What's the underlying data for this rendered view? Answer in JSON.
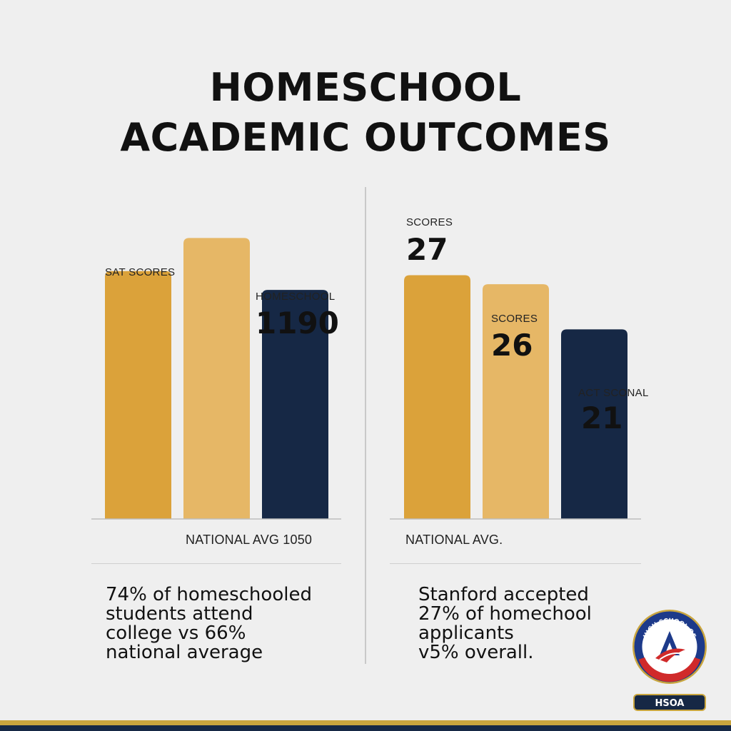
{
  "title": {
    "line1": "HOMESCHOOL",
    "line2": "ACADEMIC OUTCOMES"
  },
  "colors": {
    "gold": "#dba23a",
    "light_gold": "#e6b766",
    "navy": "#162845",
    "background": "#efefef"
  },
  "chart_data": [
    {
      "type": "bar",
      "categories": [
        "",
        "",
        ""
      ],
      "values": [
        1050,
        1190,
        970
      ],
      "colors": [
        "#dba23a",
        "#e6b766",
        "#162845"
      ],
      "ylim": [
        0,
        1300
      ],
      "labels": {
        "left": "SAT SCORES",
        "right_small": "HOMESCHOOL",
        "right_big": "1190",
        "baseline": "NATIONAL AVG 1050"
      },
      "grid": false
    },
    {
      "type": "bar",
      "categories": [
        "",
        "",
        ""
      ],
      "values": [
        27,
        26,
        21
      ],
      "colors": [
        "#dba23a",
        "#e6b766",
        "#162845"
      ],
      "ylim": [
        0,
        34
      ],
      "labels": {
        "bar1_small": "SCORES",
        "bar1_big": "27",
        "bar2_small": "SCORES",
        "bar2_big": "26",
        "bar3_small": "ACT SCONAL",
        "bar3_big": "21",
        "baseline": "NATIONAL AVG."
      },
      "grid": false
    }
  ],
  "stats": {
    "left": [
      "74% of homeschooled",
      "students attend",
      "college vs 66%",
      "national average"
    ],
    "right": [
      "Stanford accepted",
      "27% of homechool",
      "applicants",
      "v5% overall."
    ]
  },
  "badge": {
    "ring_text": "HIGH SCHOOL OF AMERICA",
    "label": "HSOA"
  }
}
